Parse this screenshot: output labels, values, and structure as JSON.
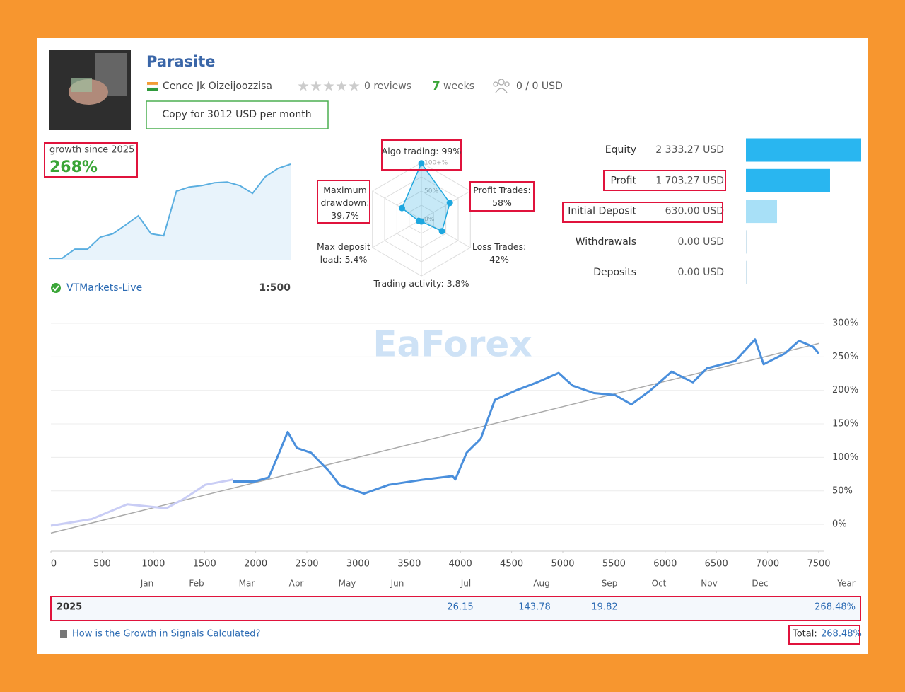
{
  "header": {
    "title": "Parasite",
    "author": "Cence Jk Oizeijoozzisa",
    "reviews": "0 reviews",
    "weeks_count": "7",
    "weeks_label": "weeks",
    "subscribers": "0 / 0 USD",
    "copy_button": "Copy for 3012 USD per month"
  },
  "growth": {
    "label": "growth since 2025",
    "value": "268%",
    "broker": "VTMarkets-Live",
    "leverage": "1:500",
    "sparkline": {
      "type": "line",
      "color": "#5aaee0",
      "values": [
        0,
        0,
        26,
        26,
        60,
        70,
        95,
        121,
        70,
        64,
        191,
        203,
        207,
        215,
        217,
        207,
        185,
        232,
        256,
        268
      ]
    }
  },
  "radar": {
    "type": "radar",
    "color": "#1ea7df",
    "ticks": [
      {
        "value": 100,
        "label": "100+%"
      },
      {
        "value": 50,
        "label": "50%"
      },
      {
        "value": 0,
        "label": "0%"
      }
    ],
    "axes": [
      {
        "label": "Algo trading:",
        "value": 99,
        "value_label": "99%"
      },
      {
        "label": "Profit Trades:",
        "value": 58,
        "value_label": "58%"
      },
      {
        "label": "Loss Trades:",
        "value": 42,
        "value_label": "42%"
      },
      {
        "label": "Trading activity:",
        "value": 3.8,
        "value_label": "3.8%"
      },
      {
        "label": "Max deposit load:",
        "value": 5.4,
        "value_label": "5.4%"
      },
      {
        "label": "Maximum drawdown:",
        "value": 39.7,
        "value_label": "39.7%"
      }
    ]
  },
  "stats": [
    {
      "label": "Equity",
      "value": 2333.27,
      "value_label": "2 333.27 USD",
      "color": "#29b6f0"
    },
    {
      "label": "Profit",
      "value": 1703.27,
      "value_label": "1 703.27 USD",
      "color": "#29b6f0"
    },
    {
      "label": "Initial Deposit",
      "value": 630.0,
      "value_label": "630.00 USD",
      "color": "#a8e0f7"
    },
    {
      "label": "Withdrawals",
      "value": 0.0,
      "value_label": "0.00 USD",
      "color": "#cfe3ee"
    },
    {
      "label": "Deposits",
      "value": 0.0,
      "value_label": "0.00 USD",
      "color": "#cfe3ee"
    }
  ],
  "watermark": "EaForex",
  "main_chart": {
    "type": "line",
    "xlim": [
      0,
      7500
    ],
    "xticks": [
      0,
      500,
      1000,
      1500,
      2000,
      2500,
      3000,
      3500,
      4000,
      4500,
      5000,
      5500,
      6000,
      6500,
      7000,
      7500
    ],
    "ylim": [
      -40,
      300
    ],
    "yticks": [
      {
        "value": 0,
        "label": "0%"
      },
      {
        "value": 50,
        "label": "50%"
      },
      {
        "value": 100,
        "label": "100%"
      },
      {
        "value": 150,
        "label": "150%"
      },
      {
        "value": 200,
        "label": "200%"
      },
      {
        "value": 250,
        "label": "250%"
      },
      {
        "value": 300,
        "label": "300%"
      }
    ],
    "grid": true,
    "months": [
      "Jan",
      "Feb",
      "Mar",
      "Apr",
      "May",
      "Jun",
      "Jul",
      "Aug",
      "Sep",
      "Oct",
      "Nov",
      "Dec",
      "Year"
    ],
    "series": [
      {
        "color": "#c9cdf5",
        "x": [
          0,
          400,
          746,
          1126,
          1298,
          1506,
          1782
        ],
        "values": [
          -2,
          8,
          30,
          24,
          38,
          59,
          67
        ]
      },
      {
        "color": "#4a8fdc",
        "x": [
          1782,
          1989,
          2127,
          2230,
          2313,
          2403,
          2541,
          2714,
          2818,
          3059,
          3301,
          3646,
          3923,
          3950,
          4061,
          4199,
          4337,
          4544,
          4751,
          4959,
          5097,
          5304,
          5511,
          5670,
          5856,
          6063,
          6271,
          6409,
          6685,
          6878,
          6961,
          7169,
          7307,
          7445,
          7500
        ],
        "values": [
          64,
          64,
          70,
          107,
          138,
          114,
          107,
          80,
          59,
          46,
          59,
          67,
          72,
          67,
          107,
          128,
          186,
          200,
          212,
          226,
          207,
          196,
          193,
          179,
          200,
          228,
          212,
          233,
          244,
          276,
          239,
          255,
          274,
          265,
          255
        ]
      },
      {
        "color": "#aaaaaa",
        "x": [
          0,
          7500
        ],
        "values": [
          -13,
          270
        ]
      }
    ]
  },
  "year_table": {
    "year": "2025",
    "cells": [
      "26.15",
      "143.78",
      "19.82"
    ],
    "year_total": "268.48%"
  },
  "footer": {
    "link": "How is the Growth in Signals Calculated?",
    "total_label": "Total:",
    "total_value": "268.48%"
  }
}
